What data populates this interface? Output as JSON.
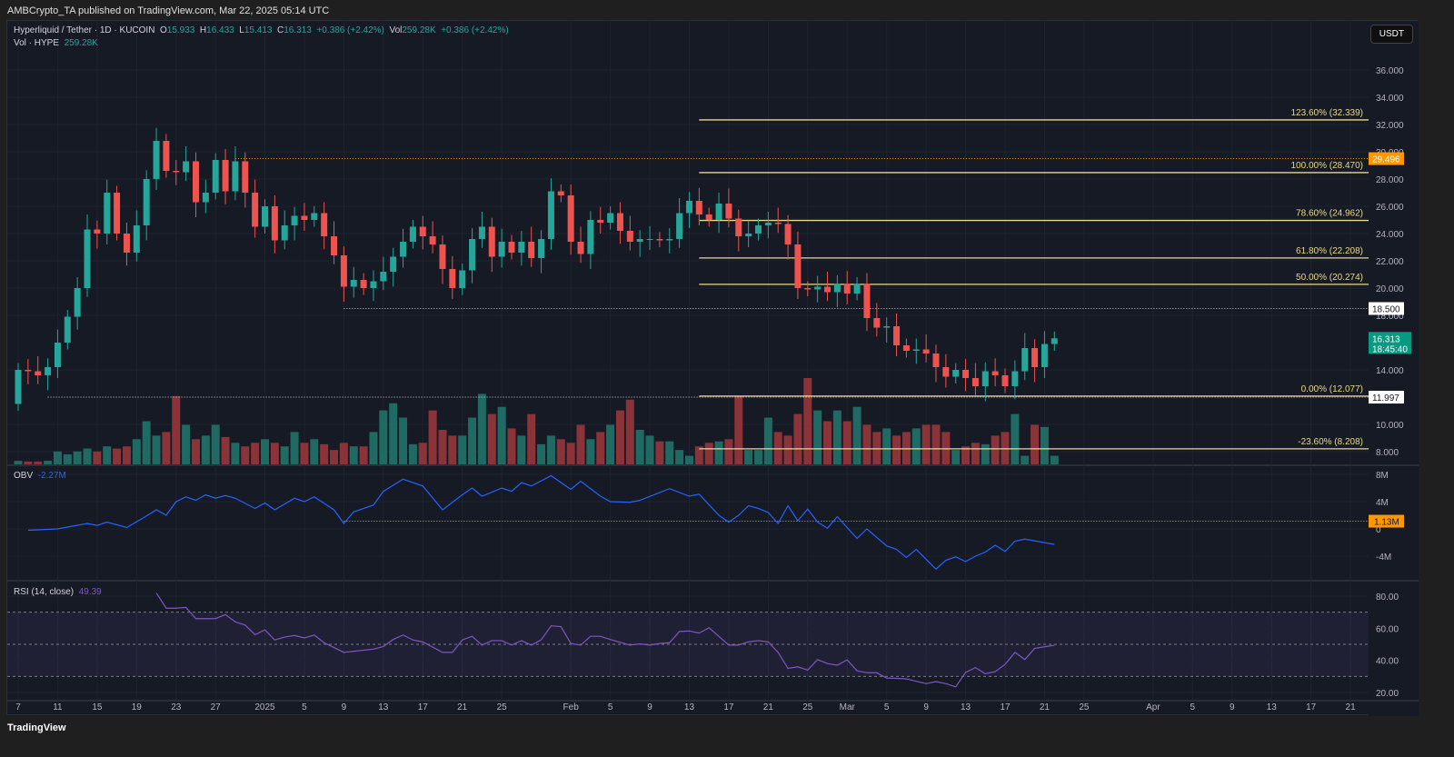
{
  "publisher": "AMBCrypto_TA published on TradingView.com, Mar 22, 2025 05:14 UTC",
  "footer": "TradingView",
  "currency": "USDT",
  "legend": {
    "symbol": "Hyperliquid / Tether · 1D · KUCOIN",
    "o": "15.933",
    "h": "16.433",
    "l": "15.413",
    "c": "16.313",
    "change": "+0.386 (+2.42%)",
    "vol": "259.28K",
    "vol_change": "+0.386 (+2.42%)",
    "vol_label": "Vol · HYPE",
    "vol_value": "259.28K",
    "obv_label": "OBV",
    "obv_value": "-2.27M",
    "rsi_label": "RSI (14, close)",
    "rsi_value": "49.39"
  },
  "colors": {
    "up": "#26a69a",
    "down": "#ef5350",
    "fib": "#e8d98a",
    "obv": "#2962ff",
    "rsi": "#7e57c2",
    "orange": "#ff9800"
  },
  "chart_data": {
    "type": "candlestick",
    "title": "Hyperliquid / Tether · 1D · KUCOIN",
    "first_open": 11.5,
    "closes": [
      14.0,
      13.9,
      13.6,
      14.2,
      16.0,
      17.9,
      20.0,
      24.3,
      24.0,
      27.0,
      24.0,
      22.6,
      24.6,
      28.0,
      30.8,
      28.6,
      28.5,
      29.3,
      26.3,
      27.0,
      29.4,
      27.1,
      29.3,
      27.0,
      24.5,
      26.0,
      23.5,
      24.6,
      25.3,
      25.0,
      25.5,
      23.8,
      22.4,
      20.1,
      20.6,
      20.0,
      20.5,
      21.2,
      22.3,
      23.4,
      24.5,
      23.8,
      23.2,
      21.4,
      20.0,
      21.3,
      23.6,
      24.5,
      22.3,
      23.4,
      22.6,
      23.4,
      22.2,
      23.6,
      27.1,
      26.8,
      23.4,
      22.5,
      25.0,
      24.8,
      25.5,
      24.2,
      23.4,
      23.6,
      23.6,
      23.5,
      23.6,
      25.5,
      26.4,
      25.4,
      25.0,
      26.2,
      25.1,
      23.8,
      24.0,
      24.6,
      24.8,
      24.7,
      23.2,
      20.0,
      19.9,
      20.1,
      19.7,
      20.3,
      19.6,
      20.3,
      17.8,
      17.1,
      17.2,
      15.8,
      15.4,
      15.5,
      15.2,
      14.2,
      13.5,
      14.0,
      13.4,
      12.8,
      13.9,
      13.6,
      12.8,
      13.9,
      15.6,
      14.2,
      15.9,
      16.313
    ],
    "volume": [
      5,
      4,
      4,
      5,
      18,
      14,
      18,
      22,
      18,
      25,
      22,
      25,
      35,
      60,
      40,
      45,
      95,
      55,
      35,
      40,
      55,
      38,
      30,
      25,
      30,
      35,
      30,
      25,
      45,
      30,
      35,
      28,
      20,
      30,
      25,
      25,
      45,
      75,
      85,
      65,
      28,
      30,
      75,
      48,
      40,
      40,
      65,
      98,
      70,
      80,
      50,
      40,
      70,
      28,
      40,
      35,
      30,
      55,
      35,
      45,
      55,
      75,
      90,
      48,
      40,
      32,
      32,
      20,
      12,
      25,
      30,
      32,
      35,
      95,
      20,
      20,
      65,
      45,
      40,
      70,
      120,
      75,
      60,
      75,
      60,
      80,
      55,
      45,
      50,
      40,
      45,
      50,
      55,
      55,
      45,
      20,
      25,
      30,
      28,
      40,
      45,
      70,
      12,
      55,
      52,
      12
    ],
    "price_ticks": [
      "36.000",
      "34.000",
      "32.000",
      "30.000",
      "28.000",
      "26.000",
      "24.000",
      "22.000",
      "20.000",
      "18.000",
      "14.000",
      "10.000",
      "8.000"
    ],
    "price_range": [
      8,
      36
    ],
    "fib_levels": [
      {
        "label": "123.60% (32.339)",
        "value": 32.339
      },
      {
        "label": "100.00% (28.470)",
        "value": 28.47
      },
      {
        "label": "78.60% (24.962)",
        "value": 24.962
      },
      {
        "label": "61.80% (22.208)",
        "value": 22.208
      },
      {
        "label": "50.00% (20.274)",
        "value": 20.274
      },
      {
        "label": "0.00% (12.077)",
        "value": 12.077
      },
      {
        "label": "-23.60% (8.208)",
        "value": 8.208
      }
    ],
    "price_labels": [
      {
        "text": "29.496",
        "value": 29.496,
        "kind": "orange"
      },
      {
        "text": "18.500",
        "value": 18.5,
        "kind": "white"
      },
      {
        "text": "11.997",
        "value": 11.997,
        "kind": "white"
      },
      {
        "text": "16.313",
        "sub": "18:45:40",
        "value": 16.313,
        "kind": "green"
      }
    ],
    "obv": {
      "ticks": [
        "8M",
        "4M",
        "0",
        "-4M"
      ],
      "marker": "1.13M",
      "marker_value": 1.13,
      "points": [
        [
          1,
          -0.2
        ],
        [
          4,
          0
        ],
        [
          7,
          0.8
        ],
        [
          8,
          0.5
        ],
        [
          9,
          1.0
        ],
        [
          11,
          0.2
        ],
        [
          13,
          1.9
        ],
        [
          14,
          2.8
        ],
        [
          15,
          2
        ],
        [
          16,
          4
        ],
        [
          17,
          4.7
        ],
        [
          18,
          4.2
        ],
        [
          19,
          5.0
        ],
        [
          20,
          4.5
        ],
        [
          21,
          4.9
        ],
        [
          22,
          4.5
        ],
        [
          24,
          3.0
        ],
        [
          25,
          3.8
        ],
        [
          26,
          2.8
        ],
        [
          28,
          4.5
        ],
        [
          29,
          4.0
        ],
        [
          30,
          4.7
        ],
        [
          32,
          2.8
        ],
        [
          33,
          0.8
        ],
        [
          34,
          2.5
        ],
        [
          36,
          3.5
        ],
        [
          37,
          5.5
        ],
        [
          39,
          7.3
        ],
        [
          41,
          6.3
        ],
        [
          43,
          2.8
        ],
        [
          45,
          5.0
        ],
        [
          46,
          6.0
        ],
        [
          47,
          4.8
        ],
        [
          49,
          6.0
        ],
        [
          50,
          5.5
        ],
        [
          51,
          6.8
        ],
        [
          52,
          6.3
        ],
        [
          54,
          7.8
        ],
        [
          56,
          5.8
        ],
        [
          57,
          7.0
        ],
        [
          59,
          4.8
        ],
        [
          60,
          4.0
        ],
        [
          62,
          3.9
        ],
        [
          63,
          4.2
        ],
        [
          66,
          5.9
        ],
        [
          68,
          4.8
        ],
        [
          69,
          5.1
        ],
        [
          71,
          2.0
        ],
        [
          72,
          1.0
        ],
        [
          73,
          2.0
        ],
        [
          74,
          3.4
        ],
        [
          75,
          3.0
        ],
        [
          76,
          2.4
        ],
        [
          77,
          0.8
        ],
        [
          78,
          3.4
        ],
        [
          79,
          1.2
        ],
        [
          80,
          2.9
        ],
        [
          81,
          1.0
        ],
        [
          82,
          0.1
        ],
        [
          83,
          1.8
        ],
        [
          85,
          -1.4
        ],
        [
          86,
          0
        ],
        [
          88,
          -2.5
        ],
        [
          89,
          -3.0
        ],
        [
          90,
          -4.2
        ],
        [
          91,
          -3.0
        ],
        [
          93,
          -5.9
        ],
        [
          94,
          -4.6
        ],
        [
          95,
          -4.1
        ],
        [
          96,
          -4.8
        ],
        [
          97,
          -4.0
        ],
        [
          98,
          -3.4
        ],
        [
          99,
          -2.4
        ],
        [
          100,
          -3.3
        ],
        [
          101,
          -1.8
        ],
        [
          102,
          -1.5
        ],
        [
          105,
          -2.27
        ]
      ]
    },
    "rsi": {
      "ticks": [
        "80.00",
        "60.00",
        "40.00",
        "20.00"
      ],
      "bands": [
        70,
        50,
        30
      ],
      "points": [
        [
          14,
          82
        ],
        [
          15,
          72.5
        ],
        [
          16,
          72.5
        ],
        [
          17,
          73
        ],
        [
          18,
          66
        ],
        [
          20,
          66
        ],
        [
          21,
          68.5
        ],
        [
          22,
          64
        ],
        [
          23,
          62
        ],
        [
          24,
          56
        ],
        [
          25,
          59
        ],
        [
          26,
          52.7
        ],
        [
          27,
          54.5
        ],
        [
          28,
          55.5
        ],
        [
          29,
          54
        ],
        [
          30,
          55.8
        ],
        [
          31,
          51
        ],
        [
          33,
          45
        ],
        [
          34,
          45.7
        ],
        [
          36,
          47
        ],
        [
          37,
          48.6
        ],
        [
          38,
          53
        ],
        [
          39,
          55.8
        ],
        [
          40,
          52.7
        ],
        [
          41,
          51.5
        ],
        [
          43,
          45
        ],
        [
          44,
          45
        ],
        [
          45,
          52.7
        ],
        [
          46,
          55
        ],
        [
          47,
          49.5
        ],
        [
          48,
          52.3
        ],
        [
          49,
          52.3
        ],
        [
          50,
          49.5
        ],
        [
          51,
          52.3
        ],
        [
          52,
          49.5
        ],
        [
          53,
          52.8
        ],
        [
          54,
          61.5
        ],
        [
          55,
          61
        ],
        [
          56,
          50.5
        ],
        [
          57,
          49.5
        ],
        [
          58,
          55
        ],
        [
          59,
          55
        ],
        [
          60,
          53
        ],
        [
          62,
          49.5
        ],
        [
          63,
          50.3
        ],
        [
          64,
          49.5
        ],
        [
          65,
          50.5
        ],
        [
          66,
          51
        ],
        [
          67,
          58
        ],
        [
          68,
          58.3
        ],
        [
          69,
          57
        ],
        [
          70,
          60.3
        ],
        [
          71,
          55
        ],
        [
          72,
          49.5
        ],
        [
          73,
          49.5
        ],
        [
          74,
          51.5
        ],
        [
          75,
          52.3
        ],
        [
          76,
          51.5
        ],
        [
          77,
          45
        ],
        [
          78,
          35
        ],
        [
          79,
          36
        ],
        [
          80,
          34
        ],
        [
          81,
          40.5
        ],
        [
          82,
          38
        ],
        [
          83,
          37
        ],
        [
          84,
          40.3
        ],
        [
          85,
          33.5
        ],
        [
          86,
          32.3
        ],
        [
          87,
          32.3
        ],
        [
          88,
          29
        ],
        [
          89,
          28.8
        ],
        [
          90,
          28.5
        ],
        [
          91,
          27
        ],
        [
          92,
          25.5
        ],
        [
          93,
          26.8
        ],
        [
          94,
          25.5
        ],
        [
          95,
          23.5
        ],
        [
          96,
          32.5
        ],
        [
          97,
          35.5
        ],
        [
          98,
          31.7
        ],
        [
          99,
          33
        ],
        [
          100,
          37.5
        ],
        [
          101,
          45
        ],
        [
          102,
          40.5
        ],
        [
          103,
          47.5
        ],
        [
          105,
          49.39
        ]
      ]
    },
    "x_ticks": [
      [
        "7",
        0
      ],
      [
        "11",
        4
      ],
      [
        "15",
        8
      ],
      [
        "19",
        12
      ],
      [
        "23",
        16
      ],
      [
        "27",
        20
      ],
      [
        "2025",
        25
      ],
      [
        "5",
        29
      ],
      [
        "9",
        33
      ],
      [
        "13",
        37
      ],
      [
        "17",
        41
      ],
      [
        "21",
        45
      ],
      [
        "25",
        49
      ],
      [
        "Feb",
        56
      ],
      [
        "5",
        60
      ],
      [
        "9",
        64
      ],
      [
        "13",
        68
      ],
      [
        "17",
        72
      ],
      [
        "21",
        76
      ],
      [
        "25",
        80
      ],
      [
        "Mar",
        84
      ],
      [
        "5",
        88
      ],
      [
        "9",
        92
      ],
      [
        "13",
        96
      ],
      [
        "17",
        100
      ],
      [
        "21",
        104
      ],
      [
        "25",
        108
      ],
      [
        "Apr",
        115
      ],
      [
        "5",
        119
      ],
      [
        "9",
        123
      ],
      [
        "13",
        127
      ],
      [
        "17",
        131
      ],
      [
        "21",
        135
      ]
    ]
  }
}
